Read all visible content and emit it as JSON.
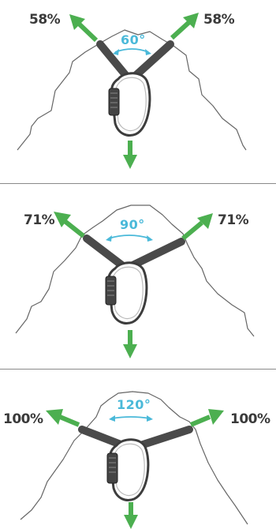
{
  "colors": {
    "arrow": "#4caf50",
    "angle": "#4ab9d9",
    "sling": "#4a4a4a",
    "rock": "#666666",
    "label": "#3a3a3a",
    "divider": "#8a8a8a"
  },
  "panels": [
    {
      "left_load": "58%",
      "right_load": "58%",
      "angle_label": "60°",
      "angle_degrees": 60
    },
    {
      "left_load": "71%",
      "right_load": "71%",
      "angle_label": "90°",
      "angle_degrees": 90
    },
    {
      "left_load": "100%",
      "right_load": "100%",
      "angle_label": "120°",
      "angle_degrees": 120
    }
  ]
}
